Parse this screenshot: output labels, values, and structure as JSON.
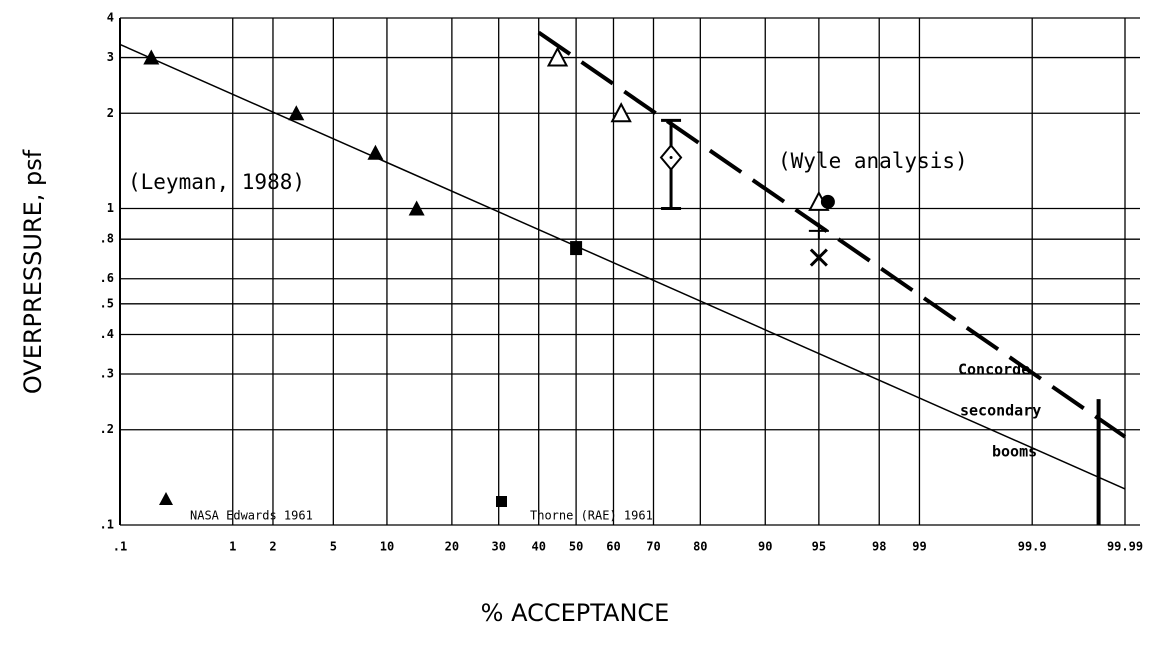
{
  "chart_data": {
    "type": "scatter",
    "xlabel": "% ACCEPTANCE",
    "ylabel": "OVERPRESSURE, psf",
    "xscale": "probit",
    "yscale": "log",
    "grid": true,
    "xlim": [
      0.1,
      99.99
    ],
    "ylim": [
      0.1,
      4
    ],
    "xticks": [
      {
        "value": 0.1,
        "label": ".1"
      },
      1,
      2,
      5,
      10,
      20,
      30,
      40,
      50,
      60,
      70,
      80,
      90,
      95,
      98,
      99,
      99.9,
      99.99
    ],
    "yticks": [
      {
        "value": 0.1,
        "label": ".1"
      },
      {
        "value": 0.2,
        "label": ".2"
      },
      {
        "value": 0.3,
        "label": ".3"
      },
      {
        "value": 0.4,
        "label": ".4"
      },
      {
        "value": 0.5,
        "label": ".5"
      },
      {
        "value": 0.6,
        "label": ".6"
      },
      {
        "value": 0.8,
        "label": ".8"
      },
      1,
      2,
      3,
      4
    ],
    "series": [
      {
        "name": "NASA Edwards 1961",
        "marker": "triangle-filled",
        "color": "#000000",
        "x": [
          0.2,
          2.9,
          8.7,
          14
        ],
        "values": [
          3,
          2,
          1.5,
          1
        ]
      },
      {
        "name": "Thorne (RAE) 1961",
        "marker": "square-filled",
        "color": "#000000",
        "x": [
          50
        ],
        "values": [
          0.75
        ]
      },
      {
        "marker": "triangle-open",
        "color": "#000000",
        "x": [
          45,
          62,
          95
        ],
        "values": [
          3,
          2,
          1.05
        ]
      },
      {
        "marker": "circle-filled",
        "color": "#000000",
        "x": [
          95.6
        ],
        "values": [
          1.05
        ]
      },
      {
        "marker": "cross",
        "color": "#000000",
        "x": [
          95
        ],
        "values": [
          0.7
        ]
      },
      {
        "marker": "plus",
        "color": "#000000",
        "x": [
          95
        ],
        "values": [
          0.85
        ]
      },
      {
        "marker": "diamond-open",
        "color": "#000000",
        "x": [
          74
        ],
        "values": [
          1.45
        ],
        "low": [
          1
        ],
        "high": [
          1.9
        ]
      }
    ],
    "lines": [
      {
        "style": "solid",
        "x": [
          0.1,
          99.99
        ],
        "values": [
          3.3,
          0.13
        ]
      },
      {
        "style": "dashed",
        "x": [
          40,
          99.99
        ],
        "values": [
          3.6,
          0.19
        ]
      },
      {
        "style": "thick",
        "x": [
          99.98,
          99.98
        ],
        "values": [
          0.1,
          0.25
        ]
      }
    ],
    "annotations": [
      "(Leyman, 1988)",
      "(Wyle analysis)",
      "Concorde",
      "secondary",
      "booms"
    ]
  }
}
